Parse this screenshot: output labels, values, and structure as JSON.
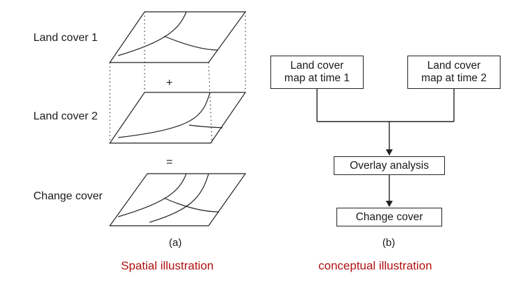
{
  "panel_a": {
    "layer_labels": [
      "Land cover 1",
      "Land cover 2",
      "Change cover"
    ],
    "plus_symbol": "+",
    "equals_symbol": "=",
    "caption": "(a)",
    "subtitle": "Spatial illustration"
  },
  "panel_b": {
    "box_time1": [
      "Land cover",
      "map at time 1"
    ],
    "box_time2": [
      "Land cover",
      "map at time 2"
    ],
    "box_overlay": "Overlay analysis",
    "box_change": "Change cover",
    "caption": "(b)",
    "subtitle": "conceptual illustration"
  },
  "colors": {
    "ink": "#1a1a1a",
    "subtitle": "#b01010"
  }
}
